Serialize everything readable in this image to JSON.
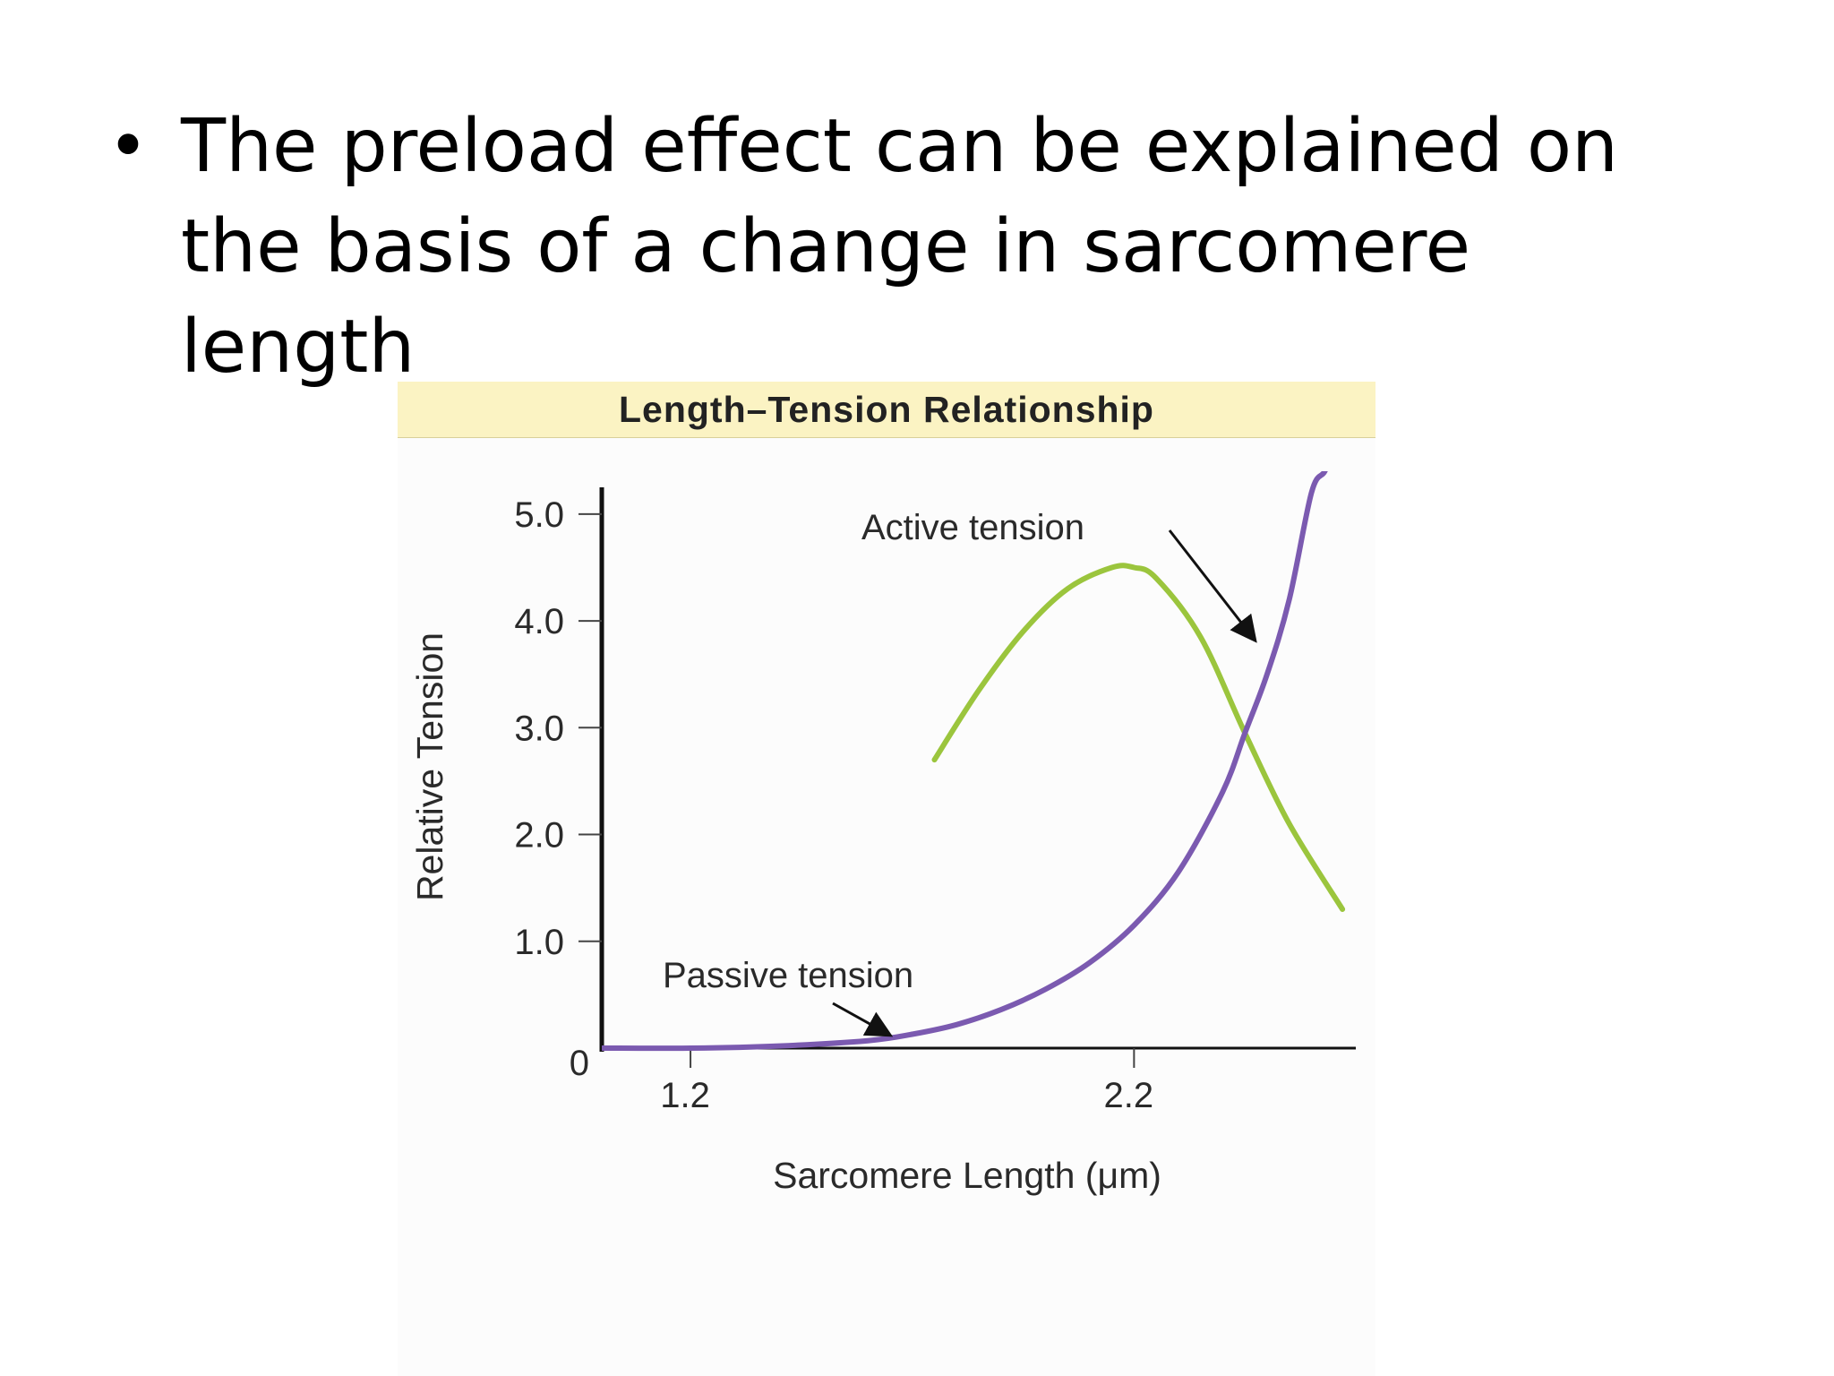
{
  "slide": {
    "bullet_symbol": "•",
    "bullet_text": "The preload effect can be explained on the basis of a change in sarcomere length"
  },
  "chart_data": {
    "type": "line",
    "title": "Length–Tension Relationship",
    "xlabel": "Sarcomere Length (μm)",
    "ylabel": "Relative Tension",
    "xlim": [
      1.0,
      2.7
    ],
    "ylim": [
      0,
      5.2
    ],
    "x_ticks": [
      {
        "value": 1.2,
        "label": "1.2"
      },
      {
        "value": 2.2,
        "label": "2.2"
      }
    ],
    "y_ticks": [
      {
        "value": 0,
        "label": "0"
      },
      {
        "value": 1.0,
        "label": "1.0"
      },
      {
        "value": 2.0,
        "label": "2.0"
      },
      {
        "value": 3.0,
        "label": "3.0"
      },
      {
        "value": 4.0,
        "label": "4.0"
      },
      {
        "value": 5.0,
        "label": "5.0"
      }
    ],
    "series": [
      {
        "name": "Active tension",
        "color": "#9bc53d",
        "x": [
          1.75,
          1.85,
          1.95,
          2.05,
          2.15,
          2.2,
          2.25,
          2.35,
          2.45,
          2.55,
          2.67
        ],
        "y": [
          2.7,
          3.35,
          3.9,
          4.3,
          4.5,
          4.5,
          4.4,
          3.85,
          2.95,
          2.1,
          1.3
        ]
      },
      {
        "name": "Passive tension",
        "color": "#7b5ab0",
        "x": [
          1.0,
          1.2,
          1.4,
          1.6,
          1.7,
          1.8,
          1.9,
          2.0,
          2.1,
          2.2,
          2.3,
          2.4,
          2.45,
          2.5,
          2.55,
          2.6,
          2.63,
          2.65
        ],
        "y": [
          0,
          0.0,
          0.02,
          0.07,
          0.13,
          0.22,
          0.36,
          0.55,
          0.8,
          1.15,
          1.65,
          2.4,
          2.95,
          3.5,
          4.2,
          5.2,
          5.4,
          5.6
        ]
      }
    ],
    "annotations": [
      {
        "text": "Active tension",
        "points_to": "Active tension",
        "arrow_target": {
          "x": 2.47,
          "y": 3.85
        }
      },
      {
        "text": "Passive tension",
        "points_to": "Passive tension",
        "arrow_target": {
          "x": 1.65,
          "y": 0.08
        }
      }
    ]
  }
}
